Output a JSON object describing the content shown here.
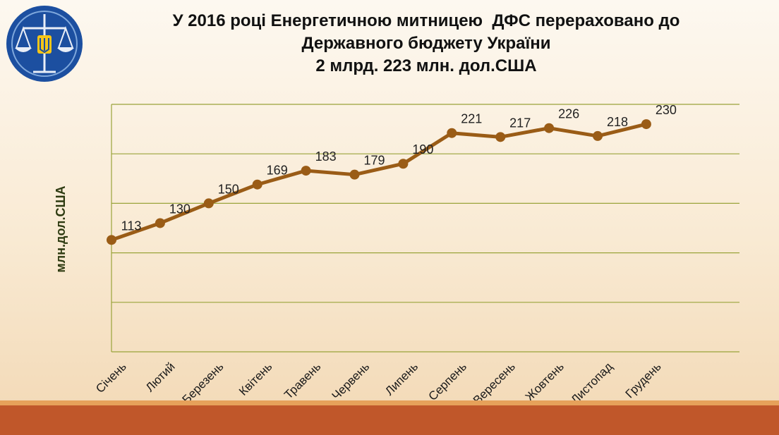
{
  "header": {
    "title_line1": "У 2016 році Енергетичною митницею  ДФС перераховано до",
    "title_line2": "Державного бюджету України",
    "title_line3": "2 млрд. 223 млн. дол.США"
  },
  "logo": {
    "icon": "scales-trident-emblem-icon"
  },
  "colors": {
    "line": "#9a5c16",
    "grid": "#9aa33a",
    "footer": "#c0572a",
    "ylabel": "#2d3a10"
  },
  "chart_data": {
    "type": "line",
    "title": "У 2016 році Енергетичною митницею  ДФС перераховано до Державного бюджету України 2 млрд. 223 млн. дол.США",
    "ylabel": "млн.дол.США",
    "xlabel": "",
    "categories": [
      "Січень",
      "Лютий",
      "Березень",
      "Квітень",
      "Травень",
      "Червень",
      "Липень",
      "Серпень",
      "Вересень",
      "Жовтень",
      "Листопад",
      "Грудень"
    ],
    "values": [
      113,
      130,
      150,
      169,
      183,
      179,
      190,
      221,
      217,
      226,
      218,
      230
    ],
    "ylim": [
      0,
      250
    ],
    "grid": true,
    "legend": "none"
  }
}
